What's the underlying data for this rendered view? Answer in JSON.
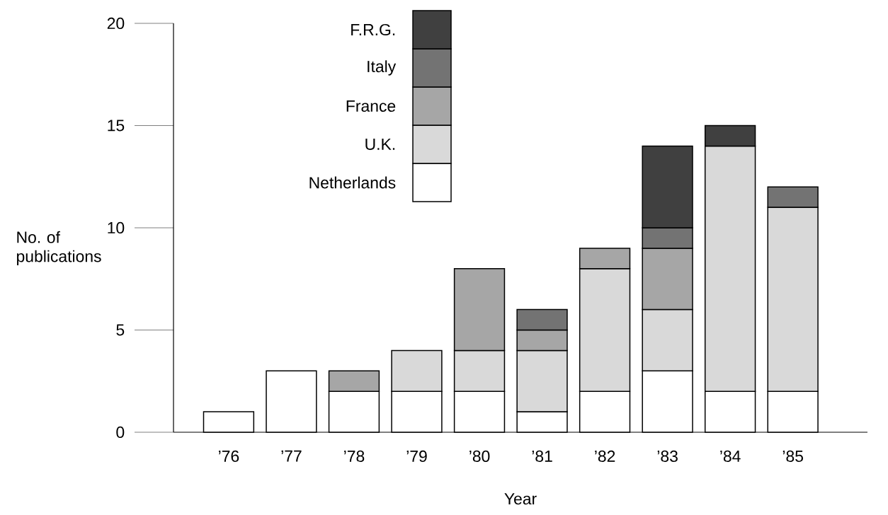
{
  "chart_data": {
    "type": "bar",
    "stacked": true,
    "xlabel": "Year",
    "ylabel": "No. of publications",
    "categories": [
      "’76",
      "’77",
      "’78",
      "’79",
      "’80",
      "’81",
      "’82",
      "’83",
      "’84",
      "’85"
    ],
    "series": [
      {
        "name": "Netherlands",
        "color": "#ffffff",
        "values": [
          1,
          3,
          2,
          2,
          2,
          1,
          2,
          3,
          2,
          2
        ]
      },
      {
        "name": "U.K.",
        "color": "#d9d9d9",
        "values": [
          0,
          0,
          0,
          2,
          2,
          3,
          6,
          3,
          12,
          9
        ]
      },
      {
        "name": "France",
        "color": "#a6a6a6",
        "values": [
          0,
          0,
          1,
          0,
          4,
          1,
          1,
          3,
          0,
          0
        ]
      },
      {
        "name": "Italy",
        "color": "#737373",
        "values": [
          0,
          0,
          0,
          0,
          0,
          1,
          0,
          1,
          0,
          1
        ]
      },
      {
        "name": "F.R.G.",
        "color": "#404040",
        "values": [
          0,
          0,
          0,
          0,
          0,
          0,
          0,
          4,
          1,
          0
        ]
      }
    ],
    "ylim": [
      0,
      20
    ],
    "yticks": [
      0,
      5,
      10,
      15,
      20
    ],
    "legend": "top left"
  }
}
